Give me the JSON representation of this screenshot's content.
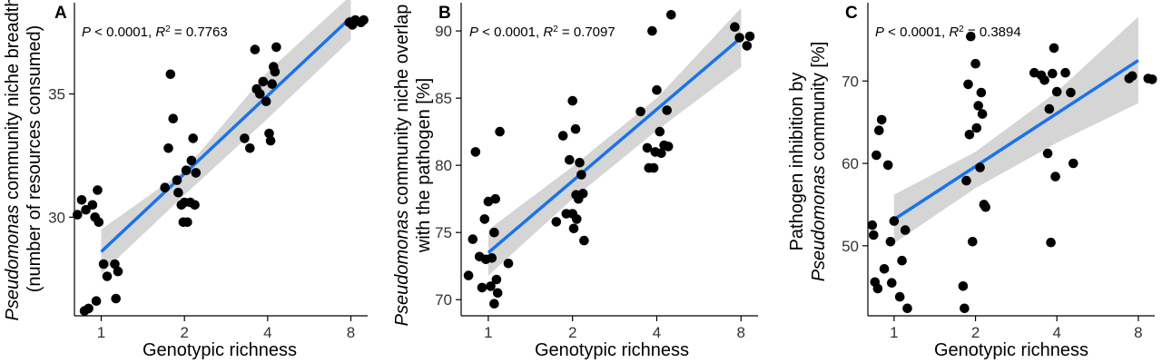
{
  "chart_data": [
    {
      "panel": "A",
      "type": "scatter",
      "stats": {
        "p_text": "P",
        "p_value": " < 0.0001, ",
        "r2_text": "R",
        "r2_sup": "2",
        "r2_value": " = 0.7763"
      },
      "xlabel": "Genotypic richness",
      "ylabel_line1_italic": "Pseudomonas",
      "ylabel_line1_rest": " community niche breadth",
      "ylabel_line2": "(number of resources consumed)",
      "x_scale": "log2",
      "x_ticks": [
        1,
        2,
        4,
        8
      ],
      "y_ticks": [
        30,
        35
      ],
      "xlim": [
        0.8,
        9.2
      ],
      "ylim": [
        26.0,
        38.7
      ],
      "fit": {
        "x_start": 1,
        "x_end": 8,
        "y_start": 28.6,
        "y_end": 38.1
      },
      "ci": {
        "x": [
          1,
          2,
          4,
          8
        ],
        "lower": [
          27.7,
          30.9,
          34.0,
          37.2
        ],
        "upper": [
          29.5,
          31.9,
          35.9,
          39.0
        ]
      },
      "points": [
        [
          0.82,
          30.1
        ],
        [
          0.85,
          30.7
        ],
        [
          0.88,
          30.3
        ],
        [
          0.93,
          30.5
        ],
        [
          0.95,
          30.0
        ],
        [
          0.97,
          31.1
        ],
        [
          0.98,
          29.8
        ],
        [
          1.02,
          28.1
        ],
        [
          1.05,
          27.6
        ],
        [
          1.12,
          28.1
        ],
        [
          1.15,
          27.8
        ],
        [
          1.13,
          26.7
        ],
        [
          0.96,
          26.6
        ],
        [
          0.87,
          26.2
        ],
        [
          0.9,
          26.3
        ],
        [
          1.7,
          31.2
        ],
        [
          1.75,
          32.8
        ],
        [
          1.78,
          35.8
        ],
        [
          1.82,
          34.0
        ],
        [
          1.88,
          31.5
        ],
        [
          1.9,
          31.0
        ],
        [
          1.95,
          30.5
        ],
        [
          1.98,
          29.8
        ],
        [
          2.0,
          30.6
        ],
        [
          2.05,
          29.8
        ],
        [
          2.1,
          30.6
        ],
        [
          2.12,
          32.3
        ],
        [
          2.15,
          33.2
        ],
        [
          2.18,
          30.5
        ],
        [
          2.2,
          31.8
        ],
        [
          2.03,
          31.9
        ],
        [
          3.3,
          33.2
        ],
        [
          3.45,
          32.8
        ],
        [
          3.6,
          36.8
        ],
        [
          3.65,
          35.2
        ],
        [
          3.75,
          35.0
        ],
        [
          3.85,
          35.5
        ],
        [
          3.95,
          34.7
        ],
        [
          4.05,
          33.4
        ],
        [
          4.1,
          33.1
        ],
        [
          4.15,
          35.4
        ],
        [
          4.2,
          36.1
        ],
        [
          4.25,
          35.9
        ],
        [
          4.3,
          36.9
        ],
        [
          7.9,
          37.9
        ],
        [
          8.1,
          37.8
        ],
        [
          8.3,
          38.0
        ],
        [
          8.7,
          37.9
        ],
        [
          8.9,
          38.0
        ]
      ]
    },
    {
      "panel": "B",
      "type": "scatter",
      "stats": {
        "p_text": "P",
        "p_value": " < 0.0001, ",
        "r2_text": "R",
        "r2_sup": "2",
        "r2_value": " = 0.7097"
      },
      "xlabel": "Genotypic richness",
      "ylabel_line1_italic": "Pseudomonas",
      "ylabel_line1_rest": " community niche overlap",
      "ylabel_line2": "with the pathogen [%]",
      "x_scale": "log2",
      "x_ticks": [
        1,
        2,
        4,
        8
      ],
      "y_ticks": [
        70,
        75,
        80,
        85,
        90
      ],
      "xlim": [
        0.8,
        9.2
      ],
      "ylim": [
        68.8,
        92.1
      ],
      "fit": {
        "x_start": 1,
        "x_end": 8,
        "y_start": 73.5,
        "y_end": 89.5
      },
      "ci": {
        "x": [
          1,
          2,
          4,
          8
        ],
        "lower": [
          71.8,
          77.5,
          82.6,
          87.3
        ],
        "upper": [
          75.2,
          79.9,
          85.0,
          91.7
        ]
      },
      "points": [
        [
          0.85,
          71.8
        ],
        [
          0.88,
          74.5
        ],
        [
          0.9,
          81.0
        ],
        [
          0.93,
          73.2
        ],
        [
          0.95,
          70.9
        ],
        [
          0.97,
          76.0
        ],
        [
          0.98,
          73.0
        ],
        [
          1.0,
          77.3
        ],
        [
          1.02,
          71.0
        ],
        [
          1.03,
          73.1
        ],
        [
          1.05,
          75.0
        ],
        [
          1.06,
          77.5
        ],
        [
          1.07,
          71.5
        ],
        [
          1.08,
          70.5
        ],
        [
          1.05,
          69.7
        ],
        [
          1.1,
          82.5
        ],
        [
          1.18,
          72.7
        ],
        [
          1.75,
          75.8
        ],
        [
          1.85,
          82.2
        ],
        [
          1.9,
          76.4
        ],
        [
          1.95,
          80.4
        ],
        [
          2.0,
          84.8
        ],
        [
          2.02,
          75.3
        ],
        [
          2.05,
          82.7
        ],
        [
          2.06,
          77.8
        ],
        [
          2.07,
          76.0
        ],
        [
          2.1,
          77.5
        ],
        [
          2.12,
          80.2
        ],
        [
          2.15,
          79.3
        ],
        [
          2.18,
          77.9
        ],
        [
          2.2,
          74.4
        ],
        [
          2.0,
          76.4
        ],
        [
          3.5,
          84.0
        ],
        [
          3.7,
          81.3
        ],
        [
          3.75,
          79.8
        ],
        [
          3.85,
          90.0
        ],
        [
          3.9,
          79.8
        ],
        [
          3.95,
          81.0
        ],
        [
          4.0,
          85.6
        ],
        [
          4.1,
          82.5
        ],
        [
          4.15,
          80.9
        ],
        [
          4.25,
          81.5
        ],
        [
          4.35,
          84.1
        ],
        [
          4.4,
          81.4
        ],
        [
          4.5,
          91.2
        ],
        [
          7.6,
          90.3
        ],
        [
          7.9,
          89.5
        ],
        [
          8.4,
          88.9
        ],
        [
          8.6,
          89.6
        ]
      ]
    },
    {
      "panel": "C",
      "type": "scatter",
      "stats": {
        "p_text": "P",
        "p_value": " < 0.0001, ",
        "r2_text": "R",
        "r2_sup": "2",
        "r2_value": " = 0.3894"
      },
      "xlabel": "Genotypic richness",
      "ylabel_line1": "Pathogen inhibition by",
      "ylabel_line2_italic": "Pseudomonas",
      "ylabel_line2_rest": " community [%]",
      "x_scale": "log2",
      "x_ticks": [
        1,
        2,
        4,
        8
      ],
      "y_ticks": [
        50,
        60,
        70
      ],
      "xlim": [
        0.8,
        9.2
      ],
      "ylim": [
        41.5,
        79.5
      ],
      "fit": {
        "x_start": 1,
        "x_end": 8,
        "y_start": 53.2,
        "y_end": 72.5
      },
      "ci": {
        "x": [
          1,
          2,
          4,
          8
        ],
        "lower": [
          50.3,
          57.0,
          62.5,
          67.3
        ],
        "upper": [
          56.2,
          61.4,
          68.7,
          77.8
        ]
      },
      "points": [
        [
          0.83,
          52.5
        ],
        [
          0.84,
          51.3
        ],
        [
          0.85,
          45.6
        ],
        [
          0.86,
          61.0
        ],
        [
          0.87,
          44.8
        ],
        [
          0.88,
          64.0
        ],
        [
          0.9,
          65.3
        ],
        [
          0.92,
          47.2
        ],
        [
          0.95,
          59.8
        ],
        [
          0.97,
          50.5
        ],
        [
          0.98,
          45.5
        ],
        [
          1.0,
          53.0
        ],
        [
          1.05,
          43.8
        ],
        [
          1.07,
          48.2
        ],
        [
          1.1,
          51.9
        ],
        [
          1.12,
          42.4
        ],
        [
          1.8,
          45.1
        ],
        [
          1.82,
          42.4
        ],
        [
          1.85,
          57.9
        ],
        [
          1.88,
          69.6
        ],
        [
          1.9,
          63.5
        ],
        [
          1.92,
          75.4
        ],
        [
          1.95,
          50.5
        ],
        [
          2.0,
          72.1
        ],
        [
          2.02,
          64.3
        ],
        [
          2.05,
          67.0
        ],
        [
          2.08,
          59.5
        ],
        [
          2.1,
          68.6
        ],
        [
          2.12,
          66.0
        ],
        [
          2.15,
          55.0
        ],
        [
          2.18,
          54.7
        ],
        [
          3.3,
          71.0
        ],
        [
          3.5,
          70.7
        ],
        [
          3.6,
          70.1
        ],
        [
          3.7,
          61.2
        ],
        [
          3.75,
          66.6
        ],
        [
          3.8,
          50.4
        ],
        [
          3.85,
          70.9
        ],
        [
          3.9,
          74.0
        ],
        [
          3.95,
          58.4
        ],
        [
          4.0,
          68.7
        ],
        [
          4.3,
          71.0
        ],
        [
          4.5,
          68.6
        ],
        [
          4.6,
          60.0
        ],
        [
          7.4,
          70.3
        ],
        [
          7.6,
          70.6
        ],
        [
          8.7,
          70.3
        ],
        [
          9.0,
          70.2
        ]
      ]
    }
  ],
  "panel_labels": [
    "A",
    "B",
    "C"
  ]
}
